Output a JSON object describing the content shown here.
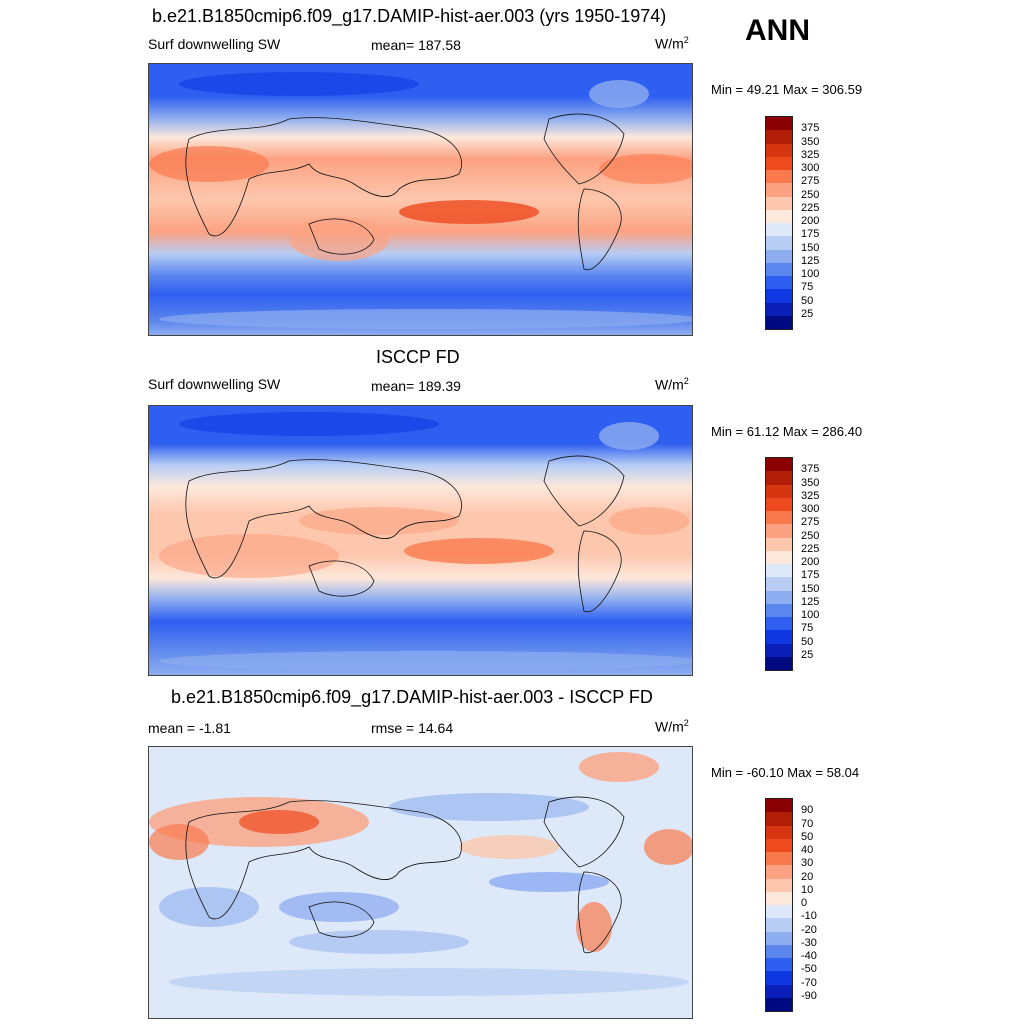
{
  "season": "ANN",
  "panels": [
    {
      "title": "b.e21.B1850cmip6.f09_g17.DAMIP-hist-aer.003 (yrs 1950-1974)",
      "left_label": "Surf downwelling SW",
      "center_label": "mean= 187.58",
      "units": "W/m",
      "units_sup": "2",
      "minmax": "Min =  49.21 Max = 306.59"
    },
    {
      "title": "ISCCP FD",
      "left_label": "Surf downwelling SW",
      "center_label": "mean= 189.39",
      "units": "W/m",
      "units_sup": "2",
      "minmax": "Min =  61.12 Max = 286.40"
    },
    {
      "title": "b.e21.B1850cmip6.f09_g17.DAMIP-hist-aer.003 - ISCCP FD",
      "left_label": "mean =  -1.81",
      "center_label": "rmse =  14.64",
      "units": "W/m",
      "units_sup": "2",
      "minmax": "Min = -60.10 Max =  58.04"
    }
  ],
  "colorbar_abs": {
    "levels": [
      "375",
      "350",
      "325",
      "300",
      "275",
      "250",
      "225",
      "200",
      "175",
      "150",
      "125",
      "100",
      "75",
      "50",
      "25"
    ],
    "colors": [
      "#8b0000",
      "#b11d07",
      "#d63512",
      "#ee4a1e",
      "#fa7a4e",
      "#fca282",
      "#fdc7ad",
      "#fde8dc",
      "#dde8f8",
      "#b7cdf4",
      "#8dadf0",
      "#5b86ee",
      "#2f5ff0",
      "#0f38e3",
      "#0a1fb8",
      "#000a80"
    ]
  },
  "colorbar_diff": {
    "levels": [
      "90",
      "70",
      "50",
      "40",
      "30",
      "20",
      "10",
      "0",
      "-10",
      "-20",
      "-30",
      "-40",
      "-50",
      "-70",
      "-90"
    ],
    "colors": [
      "#8b0000",
      "#b11d07",
      "#d63512",
      "#ee4a1e",
      "#fa7a4e",
      "#fca282",
      "#fdc7ad",
      "#fde8dc",
      "#dde8f8",
      "#b7cdf4",
      "#8dadf0",
      "#5b86ee",
      "#2f5ff0",
      "#0f38e3",
      "#0a1fb8",
      "#000a80"
    ]
  }
}
